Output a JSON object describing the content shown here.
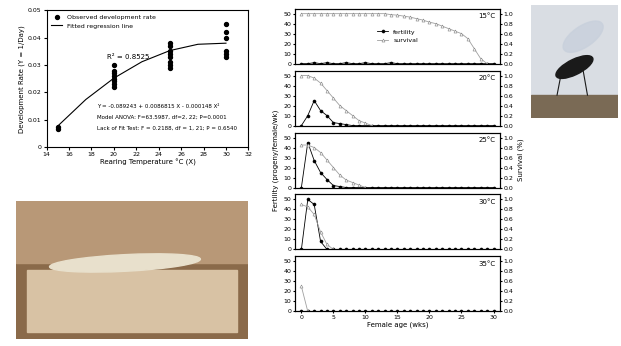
{
  "chart_data": [
    {
      "type": "scatter",
      "x_label": "Rearing Temperature °C (X)",
      "y_label": "Development Rate (Y = 1/Day)",
      "annotations": [
        "R² = 0.8525",
        "Y = -0.089243 + 0.0086815 X - 0.000148 X²",
        "Model ANOVA: F=63.5987, df=2, 22; P=0.0001",
        "Lack of Fit Test: F = 0.2188, df = 1, 21; P = 0.6540"
      ],
      "xlim": [
        14,
        32
      ],
      "xticks": [
        14,
        16,
        18,
        20,
        22,
        24,
        26,
        28,
        30,
        32
      ],
      "ylim": [
        0,
        0.05
      ],
      "yticks": [
        0,
        0.01,
        0.02,
        0.03,
        0.04,
        0.05
      ],
      "legend": "upper left",
      "series": [
        {
          "name": "Observed development rate",
          "type": "scatter",
          "color": "#000000",
          "marker": "circle",
          "x": [
            15,
            15,
            20,
            20,
            20,
            20,
            20,
            20,
            20,
            20,
            25,
            25,
            25,
            25,
            25,
            25,
            25,
            25,
            30,
            30,
            30,
            30,
            30,
            30
          ],
          "values": [
            0.0065,
            0.0075,
            0.022,
            0.023,
            0.024,
            0.025,
            0.026,
            0.027,
            0.028,
            0.03,
            0.029,
            0.03,
            0.031,
            0.033,
            0.034,
            0.035,
            0.037,
            0.038,
            0.033,
            0.034,
            0.035,
            0.04,
            0.042,
            0.045
          ]
        },
        {
          "name": "Fitted regression line",
          "type": "line",
          "color": "#000000",
          "line_style": "solid",
          "x": [
            15,
            17.5,
            20,
            22.5,
            25,
            27.5,
            30
          ],
          "values": [
            0.0077,
            0.0174,
            0.0252,
            0.0312,
            0.0353,
            0.0376,
            0.038
          ]
        }
      ]
    },
    {
      "type": "line",
      "title": "15°C",
      "legend": "center",
      "x": [
        0,
        1,
        2,
        3,
        4,
        5,
        6,
        7,
        8,
        9,
        10,
        11,
        12,
        13,
        14,
        15,
        16,
        17,
        18,
        19,
        20,
        21,
        22,
        23,
        24,
        25,
        26,
        27,
        28,
        29,
        30
      ],
      "xlim": [
        -1,
        31
      ],
      "ylim": [
        0,
        55
      ],
      "yticks": [
        0,
        10,
        20,
        30,
        40,
        50
      ],
      "y2lim": [
        0,
        1.1
      ],
      "y2ticks": [
        0.0,
        0.2,
        0.4,
        0.6,
        0.8,
        1.0
      ],
      "series": [
        {
          "name": "fertility",
          "color": "#000000",
          "marker": "circle",
          "line_style": "solid",
          "values": [
            0,
            0,
            1,
            0,
            1,
            0,
            0,
            1,
            0,
            0,
            1,
            0,
            0,
            0,
            1,
            0,
            0,
            0,
            0,
            0,
            0,
            0,
            0,
            0,
            0,
            0,
            0,
            0,
            0,
            0,
            0
          ]
        },
        {
          "name": "survival",
          "axis": "y2",
          "color": "#a0a0a0",
          "marker": "triangle",
          "line_style": "solid",
          "values": [
            1.0,
            1.0,
            1.0,
            1.0,
            1.0,
            1.0,
            1.0,
            1.0,
            1.0,
            1.0,
            1.0,
            1.0,
            1.0,
            1.0,
            0.98,
            0.97,
            0.95,
            0.93,
            0.9,
            0.87,
            0.83,
            0.8,
            0.75,
            0.7,
            0.65,
            0.6,
            0.5,
            0.3,
            0.1,
            0.0,
            null
          ]
        }
      ]
    },
    {
      "type": "line",
      "title": "20°C",
      "x": [
        0,
        1,
        2,
        3,
        4,
        5,
        6,
        7,
        8,
        9,
        10,
        11,
        12,
        13,
        14,
        15,
        16,
        17,
        18,
        19,
        20,
        21,
        22,
        23,
        24,
        25,
        26,
        27,
        28,
        29,
        30
      ],
      "xlim": [
        -1,
        31
      ],
      "ylim": [
        0,
        55
      ],
      "yticks": [
        0,
        10,
        20,
        30,
        40,
        50
      ],
      "y2lim": [
        0,
        1.1
      ],
      "y2ticks": [
        0.0,
        0.2,
        0.4,
        0.6,
        0.8,
        1.0
      ],
      "series": [
        {
          "color": "#000000",
          "marker": "circle",
          "line_style": "solid",
          "values": [
            0,
            10,
            25,
            15,
            10,
            3,
            2,
            1,
            0,
            0,
            0,
            0,
            0,
            0,
            0,
            0,
            0,
            0,
            0,
            0,
            0,
            0,
            0,
            0,
            0,
            0,
            0,
            0,
            0,
            0,
            0
          ]
        },
        {
          "axis": "y2",
          "color": "#a0a0a0",
          "marker": "triangle",
          "line_style": "solid",
          "values": [
            1.0,
            1.0,
            0.95,
            0.85,
            0.7,
            0.55,
            0.4,
            0.3,
            0.2,
            0.1,
            0.05,
            0.0,
            null,
            null,
            null,
            null,
            null,
            null,
            null,
            null,
            null,
            null,
            null,
            null,
            null,
            null,
            null,
            null,
            null,
            null,
            null
          ]
        }
      ]
    },
    {
      "type": "line",
      "title": "25°C",
      "y_label": "Fertility (progeny/female/wk)",
      "y2_label": "Survival (%)",
      "x": [
        0,
        1,
        2,
        3,
        4,
        5,
        6,
        7,
        8,
        9,
        10,
        11,
        12,
        13,
        14,
        15,
        16,
        17,
        18,
        19,
        20,
        21,
        22,
        23,
        24,
        25,
        26,
        27,
        28,
        29,
        30
      ],
      "xlim": [
        -1,
        31
      ],
      "ylim": [
        0,
        55
      ],
      "yticks": [
        0,
        10,
        20,
        30,
        40,
        50
      ],
      "y2lim": [
        0,
        1.1
      ],
      "y2ticks": [
        0.0,
        0.2,
        0.4,
        0.6,
        0.8,
        1.0
      ],
      "series": [
        {
          "color": "#000000",
          "marker": "circle",
          "line_style": "solid",
          "values": [
            0,
            45,
            27,
            15,
            8,
            2,
            1,
            0,
            0,
            0,
            0,
            0,
            0,
            0,
            0,
            0,
            0,
            0,
            0,
            0,
            0,
            0,
            0,
            0,
            0,
            0,
            0,
            0,
            0,
            0,
            0
          ]
        },
        {
          "axis": "y2",
          "color": "#a0a0a0",
          "marker": "triangle",
          "line_style": "solid",
          "values": [
            0.85,
            0.85,
            0.8,
            0.7,
            0.55,
            0.4,
            0.25,
            0.15,
            0.1,
            0.05,
            0.0,
            null,
            null,
            null,
            null,
            null,
            null,
            null,
            null,
            null,
            null,
            null,
            null,
            null,
            null,
            null,
            null,
            null,
            null,
            null,
            null
          ]
        }
      ]
    },
    {
      "type": "line",
      "title": "30°C",
      "x": [
        0,
        1,
        2,
        3,
        4,
        5,
        6,
        7,
        8,
        9,
        10,
        11,
        12,
        13,
        14,
        15,
        16,
        17,
        18,
        19,
        20,
        21,
        22,
        23,
        24,
        25,
        26,
        27,
        28,
        29,
        30
      ],
      "xlim": [
        -1,
        31
      ],
      "ylim": [
        0,
        55
      ],
      "yticks": [
        0,
        10,
        20,
        30,
        40,
        50
      ],
      "y2lim": [
        0,
        1.1
      ],
      "y2ticks": [
        0.0,
        0.2,
        0.4,
        0.6,
        0.8,
        1.0
      ],
      "series": [
        {
          "color": "#000000",
          "marker": "circle",
          "line_style": "solid",
          "values": [
            0,
            50,
            45,
            8,
            0,
            0,
            0,
            0,
            0,
            0,
            0,
            0,
            0,
            0,
            0,
            0,
            0,
            0,
            0,
            0,
            0,
            0,
            0,
            0,
            0,
            0,
            0,
            0,
            0,
            0,
            0
          ]
        },
        {
          "axis": "y2",
          "color": "#a0a0a0",
          "marker": "triangle",
          "line_style": "solid",
          "values": [
            0.9,
            0.85,
            0.7,
            0.35,
            0.1,
            0.0,
            null,
            null,
            null,
            null,
            null,
            null,
            null,
            null,
            null,
            null,
            null,
            null,
            null,
            null,
            null,
            null,
            null,
            null,
            null,
            null,
            null,
            null,
            null,
            null,
            null
          ]
        }
      ]
    },
    {
      "type": "line",
      "title": "35°C",
      "x_label": "Female age (wks)",
      "x": [
        0,
        1,
        2,
        3,
        4,
        5,
        6,
        7,
        8,
        9,
        10,
        11,
        12,
        13,
        14,
        15,
        16,
        17,
        18,
        19,
        20,
        21,
        22,
        23,
        24,
        25,
        26,
        27,
        28,
        29,
        30
      ],
      "xlim": [
        -1,
        31
      ],
      "xticks": [
        0,
        5,
        10,
        15,
        20,
        25,
        30
      ],
      "ylim": [
        0,
        55
      ],
      "yticks": [
        0,
        10,
        20,
        30,
        40,
        50
      ],
      "y2lim": [
        0,
        1.1
      ],
      "y2ticks": [
        0.0,
        0.2,
        0.4,
        0.6,
        0.8,
        1.0
      ],
      "series": [
        {
          "color": "#000000",
          "marker": "circle",
          "line_style": "solid",
          "values": [
            0,
            0,
            0,
            0,
            0,
            0,
            0,
            0,
            0,
            0,
            0,
            0,
            0,
            0,
            0,
            0,
            0,
            0,
            0,
            0,
            0,
            0,
            0,
            0,
            0,
            0,
            0,
            0,
            0,
            0,
            0
          ]
        },
        {
          "axis": "y2",
          "color": "#a0a0a0",
          "marker": "triangle",
          "line_style": "solid",
          "values": [
            0.5,
            0.0,
            null,
            null,
            null,
            null,
            null,
            null,
            null,
            null,
            null,
            null,
            null,
            null,
            null,
            null,
            null,
            null,
            null,
            null,
            null,
            null,
            null,
            null,
            null,
            null,
            null,
            null,
            null,
            null,
            null
          ]
        }
      ]
    }
  ]
}
